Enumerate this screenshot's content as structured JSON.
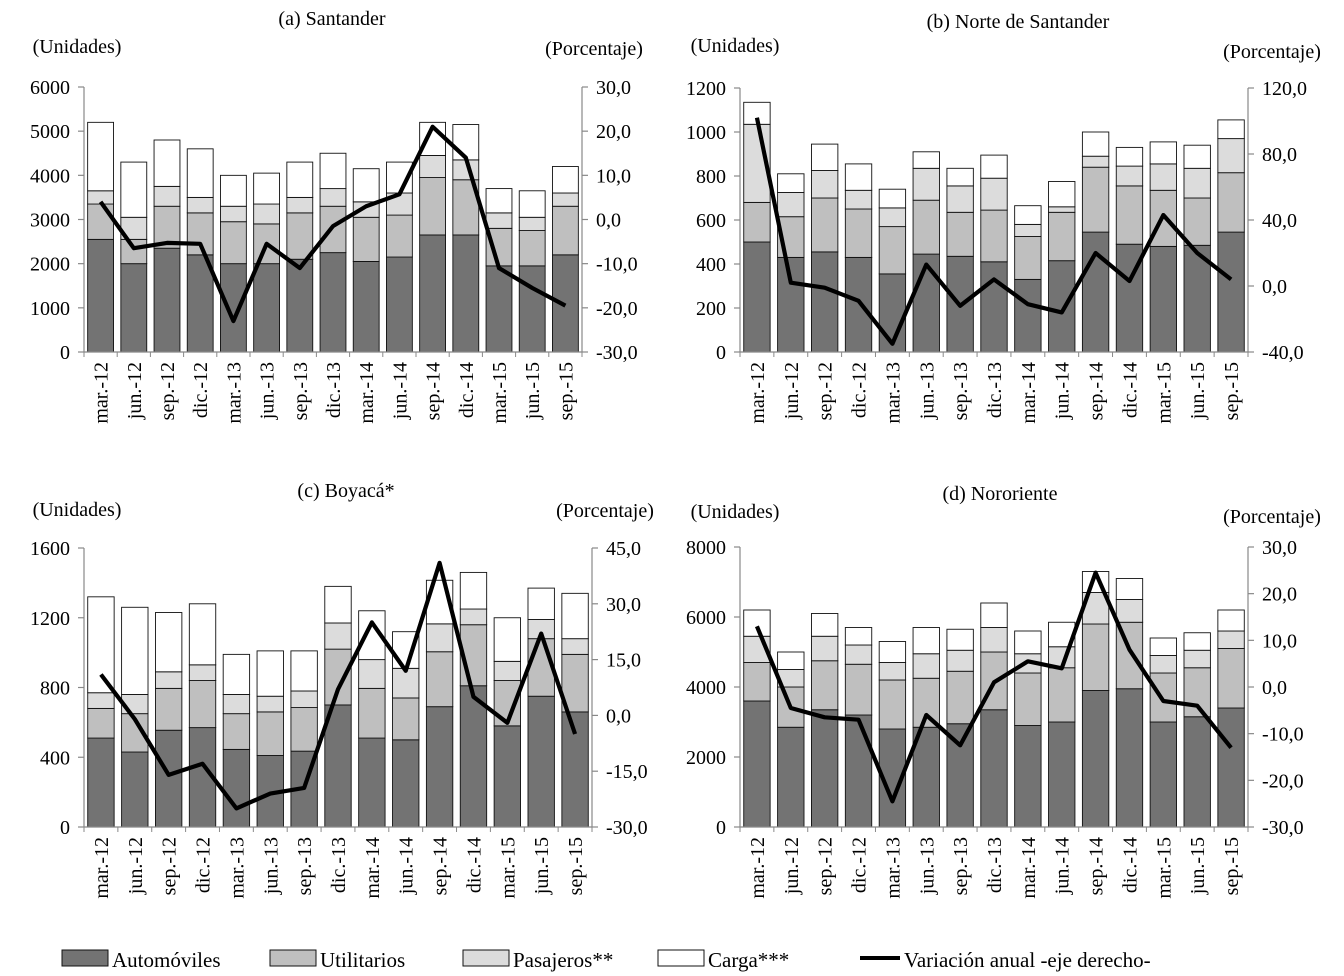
{
  "categories": [
    "mar.-12",
    "jun.-12",
    "sep.-12",
    "dic.-12",
    "mar.-13",
    "jun.-13",
    "sep.-13",
    "dic.-13",
    "mar.-14",
    "jun.-14",
    "sep.-14",
    "dic.-14",
    "mar.-15",
    "jun.-15",
    "sep.-15"
  ],
  "legend": {
    "items": [
      {
        "label": "Automóviles",
        "color": "#737373",
        "type": "bar"
      },
      {
        "label": "Utilitarios",
        "color": "#bfbfbf",
        "type": "bar"
      },
      {
        "label": "Pasajeros**",
        "color": "#dcdcdc",
        "type": "bar"
      },
      {
        "label": "Carga***",
        "color": "#ffffff",
        "type": "bar"
      },
      {
        "label": "Variación anual -eje derecho-",
        "color": "#000000",
        "type": "line"
      }
    ]
  },
  "chart_data": [
    {
      "type": "bar",
      "stacked": true,
      "title": "(a) Santander",
      "ylabel_left": "(Unidades)",
      "ylabel_right": "(Porcentaje)",
      "ylim": [
        0,
        6000
      ],
      "yticks": [
        "0",
        "1000",
        "2000",
        "3000",
        "4000",
        "5000",
        "6000"
      ],
      "y2lim": [
        -30,
        30
      ],
      "y2ticks": [
        "-30,0",
        "-20,0",
        "-10,0",
        "0,0",
        "10,0",
        "20,0",
        "30,0"
      ],
      "series": [
        {
          "name": "Automóviles",
          "values": [
            2550,
            2000,
            2350,
            2200,
            2000,
            2000,
            2100,
            2250,
            2050,
            2150,
            2650,
            2650,
            1950,
            1950,
            2200
          ]
        },
        {
          "name": "Utilitarios",
          "values": [
            800,
            550,
            950,
            950,
            950,
            900,
            1050,
            1050,
            1000,
            950,
            1300,
            1250,
            850,
            800,
            1100
          ]
        },
        {
          "name": "Pasajeros**",
          "values": [
            300,
            500,
            450,
            350,
            350,
            450,
            350,
            400,
            350,
            500,
            500,
            450,
            350,
            300,
            300
          ]
        },
        {
          "name": "Carga***",
          "values": [
            1550,
            1250,
            1050,
            1100,
            700,
            700,
            800,
            800,
            750,
            700,
            750,
            800,
            550,
            600,
            600
          ]
        },
        {
          "name": "Variación anual -eje derecho-",
          "axis": "right",
          "values": [
            4,
            -6.5,
            -5.3,
            -5.5,
            -23,
            -5.5,
            -11,
            -1.5,
            3,
            5.7,
            21,
            14,
            -11,
            -15.5,
            -19.5
          ]
        }
      ]
    },
    {
      "type": "bar",
      "stacked": true,
      "title": "(b) Norte de Santander",
      "ylabel_left": "(Unidades)",
      "ylabel_right": "(Porcentaje)",
      "ylim": [
        0,
        1200
      ],
      "yticks": [
        "0",
        "200",
        "400",
        "600",
        "800",
        "1000",
        "1200"
      ],
      "y2lim": [
        -40,
        120
      ],
      "y2ticks": [
        "-40,0",
        "0,0",
        "40,0",
        "80,0",
        "120,0"
      ],
      "series": [
        {
          "name": "Automóviles",
          "values": [
            500,
            430,
            455,
            430,
            355,
            445,
            435,
            410,
            330,
            415,
            545,
            490,
            480,
            485,
            545
          ]
        },
        {
          "name": "Utilitarios",
          "values": [
            180,
            185,
            245,
            220,
            215,
            245,
            200,
            235,
            195,
            220,
            295,
            265,
            255,
            215,
            270
          ]
        },
        {
          "name": "Pasajeros**",
          "values": [
            355,
            110,
            125,
            85,
            85,
            145,
            120,
            145,
            55,
            25,
            50,
            90,
            120,
            135,
            155
          ]
        },
        {
          "name": "Carga***",
          "values": [
            100,
            85,
            120,
            120,
            85,
            75,
            80,
            105,
            85,
            115,
            110,
            85,
            100,
            105,
            85
          ]
        },
        {
          "name": "Variación anual -eje derecho-",
          "axis": "right",
          "values": [
            102,
            2,
            -1,
            -9,
            -35,
            13,
            -12,
            4,
            -11,
            -16,
            20,
            3,
            43,
            20,
            4
          ]
        }
      ]
    },
    {
      "type": "bar",
      "stacked": true,
      "title": "(c) Boyacá*",
      "ylabel_left": "(Unidades)",
      "ylabel_right": "(Porcentaje)",
      "ylim": [
        0,
        1600
      ],
      "yticks": [
        "0",
        "400",
        "800",
        "1200",
        "1600"
      ],
      "y2lim": [
        -30,
        45
      ],
      "y2ticks": [
        "-30,0",
        "-15,0",
        "0,0",
        "15,0",
        "30,0",
        "45,0"
      ],
      "series": [
        {
          "name": "Automóviles",
          "values": [
            510,
            430,
            555,
            570,
            445,
            410,
            435,
            700,
            510,
            500,
            690,
            810,
            580,
            750,
            660
          ]
        },
        {
          "name": "Utilitarios",
          "values": [
            170,
            220,
            240,
            270,
            205,
            250,
            250,
            320,
            285,
            240,
            315,
            350,
            260,
            330,
            330
          ]
        },
        {
          "name": "Pasajeros**",
          "values": [
            90,
            110,
            95,
            90,
            110,
            90,
            95,
            150,
            165,
            170,
            160,
            90,
            110,
            110,
            90
          ]
        },
        {
          "name": "Carga***",
          "values": [
            550,
            500,
            340,
            350,
            230,
            260,
            230,
            210,
            280,
            210,
            250,
            210,
            250,
            180,
            260
          ]
        },
        {
          "name": "Variación anual -eje derecho-",
          "axis": "right",
          "values": [
            11,
            -1,
            -16,
            -13,
            -25,
            -21,
            -19.5,
            7,
            25,
            12,
            41,
            5,
            -2,
            22,
            -5
          ]
        }
      ]
    },
    {
      "type": "bar",
      "stacked": true,
      "title": "(d) Nororiente",
      "ylabel_left": "(Unidades)",
      "ylabel_right": "(Porcentaje)",
      "ylim": [
        0,
        8000
      ],
      "yticks": [
        "0",
        "2000",
        "4000",
        "6000",
        "8000"
      ],
      "y2lim": [
        -30,
        30
      ],
      "y2ticks": [
        "-30,0",
        "-20,0",
        "-10,0",
        "0,0",
        "10,0",
        "20,0",
        "30,0"
      ],
      "series": [
        {
          "name": "Automóviles",
          "values": [
            3600,
            2850,
            3350,
            3200,
            2800,
            2850,
            2950,
            3350,
            2900,
            3000,
            3900,
            3950,
            3000,
            3150,
            3400
          ]
        },
        {
          "name": "Utilitarios",
          "values": [
            1100,
            1150,
            1400,
            1450,
            1400,
            1400,
            1500,
            1650,
            1500,
            1550,
            1900,
            1900,
            1400,
            1400,
            1700
          ]
        },
        {
          "name": "Pasajeros**",
          "values": [
            750,
            500,
            700,
            550,
            500,
            700,
            600,
            700,
            550,
            600,
            900,
            650,
            500,
            500,
            500
          ]
        },
        {
          "name": "Carga***",
          "values": [
            750,
            500,
            650,
            500,
            600,
            750,
            600,
            700,
            650,
            700,
            600,
            600,
            500,
            500,
            600
          ]
        },
        {
          "name": "Variación anual -eje derecho-",
          "axis": "right",
          "values": [
            13,
            -4.5,
            -6.5,
            -7,
            -24.5,
            -6,
            -12.5,
            1,
            5.5,
            4,
            24.5,
            8,
            -3,
            -4,
            -13
          ]
        }
      ]
    }
  ]
}
